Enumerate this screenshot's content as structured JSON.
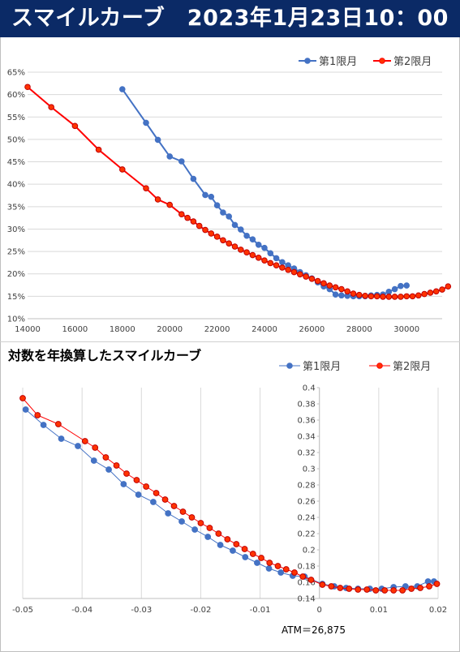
{
  "banner": {
    "title": "スマイルカーブ　2023年1月23日10：00"
  },
  "chart_data": [
    {
      "type": "line",
      "title": "",
      "xlabel": "",
      "ylabel": "",
      "xlim": [
        14000,
        31500
      ],
      "ylim": [
        0.1,
        0.65
      ],
      "y_format": "percent",
      "x_ticks": [
        14000,
        16000,
        18000,
        20000,
        22000,
        24000,
        26000,
        28000,
        30000
      ],
      "y_ticks": [
        0.1,
        0.15,
        0.2,
        0.25,
        0.3,
        0.35,
        0.4,
        0.45,
        0.5,
        0.55,
        0.6,
        0.65
      ],
      "x_tick_labels": [
        "14000",
        "16000",
        "18000",
        "20000",
        "22000",
        "24000",
        "26000",
        "28000",
        "30000"
      ],
      "y_tick_labels": [
        "10%",
        "15%",
        "20%",
        "25%",
        "30%",
        "35%",
        "40%",
        "45%",
        "50%",
        "55%",
        "60%",
        "65%"
      ],
      "legend_position": "top-right",
      "grid": "horizontal",
      "series": [
        {
          "name": "第1限月",
          "color": "#4472c4",
          "points": [
            [
              18000,
              0.612
            ],
            [
              19000,
              0.537
            ],
            [
              19500,
              0.499
            ],
            [
              20000,
              0.462
            ],
            [
              20500,
              0.451
            ],
            [
              21000,
              0.412
            ],
            [
              21500,
              0.376
            ],
            [
              21750,
              0.372
            ],
            [
              22000,
              0.353
            ],
            [
              22250,
              0.337
            ],
            [
              22500,
              0.328
            ],
            [
              22750,
              0.309
            ],
            [
              23000,
              0.299
            ],
            [
              23250,
              0.285
            ],
            [
              23500,
              0.277
            ],
            [
              23750,
              0.265
            ],
            [
              24000,
              0.258
            ],
            [
              24250,
              0.246
            ],
            [
              24500,
              0.235
            ],
            [
              24750,
              0.226
            ],
            [
              25000,
              0.219
            ],
            [
              25250,
              0.212
            ],
            [
              25500,
              0.204
            ],
            [
              25750,
              0.197
            ],
            [
              26000,
              0.19
            ],
            [
              26250,
              0.181
            ],
            [
              26500,
              0.172
            ],
            [
              26750,
              0.166
            ],
            [
              27000,
              0.154
            ],
            [
              27250,
              0.152
            ],
            [
              27500,
              0.151
            ],
            [
              27750,
              0.15
            ],
            [
              28000,
              0.15
            ],
            [
              28250,
              0.15
            ],
            [
              28500,
              0.152
            ],
            [
              28750,
              0.153
            ],
            [
              29000,
              0.154
            ],
            [
              29250,
              0.16
            ],
            [
              29500,
              0.166
            ],
            [
              29750,
              0.173
            ],
            [
              30000,
              0.174
            ]
          ]
        },
        {
          "name": "第2限月",
          "color": "#ff0000",
          "points": [
            [
              14000,
              0.617
            ],
            [
              15000,
              0.572
            ],
            [
              16000,
              0.53
            ],
            [
              17000,
              0.477
            ],
            [
              18000,
              0.433
            ],
            [
              19000,
              0.391
            ],
            [
              19500,
              0.366
            ],
            [
              20000,
              0.354
            ],
            [
              20500,
              0.333
            ],
            [
              20750,
              0.325
            ],
            [
              21000,
              0.317
            ],
            [
              21250,
              0.307
            ],
            [
              21500,
              0.298
            ],
            [
              21750,
              0.29
            ],
            [
              22000,
              0.283
            ],
            [
              22250,
              0.275
            ],
            [
              22500,
              0.268
            ],
            [
              22750,
              0.261
            ],
            [
              23000,
              0.254
            ],
            [
              23250,
              0.248
            ],
            [
              23500,
              0.242
            ],
            [
              23750,
              0.236
            ],
            [
              24000,
              0.23
            ],
            [
              24250,
              0.224
            ],
            [
              24500,
              0.219
            ],
            [
              24750,
              0.214
            ],
            [
              25000,
              0.209
            ],
            [
              25250,
              0.204
            ],
            [
              25500,
              0.199
            ],
            [
              25750,
              0.194
            ],
            [
              26000,
              0.189
            ],
            [
              26250,
              0.184
            ],
            [
              26500,
              0.179
            ],
            [
              26750,
              0.174
            ],
            [
              27000,
              0.17
            ],
            [
              27250,
              0.166
            ],
            [
              27500,
              0.161
            ],
            [
              27750,
              0.156
            ],
            [
              28000,
              0.153
            ],
            [
              28250,
              0.151
            ],
            [
              28500,
              0.15
            ],
            [
              28750,
              0.15
            ],
            [
              29000,
              0.149
            ],
            [
              29250,
              0.149
            ],
            [
              29500,
              0.149
            ],
            [
              29750,
              0.149
            ],
            [
              30000,
              0.15
            ],
            [
              30250,
              0.15
            ],
            [
              30500,
              0.152
            ],
            [
              30750,
              0.155
            ],
            [
              31000,
              0.158
            ],
            [
              31250,
              0.161
            ],
            [
              31500,
              0.165
            ],
            [
              31750,
              0.172
            ]
          ]
        }
      ]
    },
    {
      "type": "line",
      "title": "対数を年換算したスマイルカーブ",
      "xlabel": "",
      "ylabel": "",
      "xlim": [
        -0.05,
        0.02
      ],
      "ylim": [
        0.14,
        0.4
      ],
      "x_ticks": [
        -0.05,
        -0.04,
        -0.03,
        -0.02,
        -0.01,
        0,
        0.01,
        0.02
      ],
      "x_tick_labels": [
        "-0.05",
        "-0.04",
        "-0.03",
        "-0.02",
        "-0.01",
        "0",
        "0.01",
        "0.02"
      ],
      "y_ticks": [
        0.14,
        0.16,
        0.18,
        0.2,
        0.22,
        0.24,
        0.26,
        0.28,
        0.3,
        0.32,
        0.34,
        0.36,
        0.38,
        0.4
      ],
      "y_tick_labels": [
        "0.14",
        "0.16",
        "0.18",
        "0.2",
        "0.22",
        "0.24",
        "0.26",
        "0.28",
        "0.3",
        "0.32",
        "0.34",
        "0.36",
        "0.38",
        "0.4"
      ],
      "y_axis_at_x": 0,
      "legend_position": "top-right",
      "grid": "vertical",
      "annotation": "ATM＝26,875",
      "series": [
        {
          "name": "第1限月",
          "color": "#4472c4",
          "points": [
            [
              -0.0495,
              0.373
            ],
            [
              -0.0465,
              0.354
            ],
            [
              -0.0435,
              0.337
            ],
            [
              -0.0407,
              0.328
            ],
            [
              -0.038,
              0.31
            ],
            [
              -0.0355,
              0.299
            ],
            [
              -0.033,
              0.281
            ],
            [
              -0.0305,
              0.268
            ],
            [
              -0.028,
              0.259
            ],
            [
              -0.0255,
              0.245
            ],
            [
              -0.0232,
              0.235
            ],
            [
              -0.021,
              0.225
            ],
            [
              -0.0188,
              0.216
            ],
            [
              -0.0167,
              0.206
            ],
            [
              -0.0146,
              0.199
            ],
            [
              -0.0125,
              0.191
            ],
            [
              -0.0105,
              0.184
            ],
            [
              -0.0085,
              0.177
            ],
            [
              -0.0065,
              0.172
            ],
            [
              -0.0045,
              0.168
            ],
            [
              -0.0025,
              0.167
            ],
            [
              0.0005,
              0.158
            ],
            [
              0.0025,
              0.155
            ],
            [
              0.0045,
              0.153
            ],
            [
              0.0065,
              0.152
            ],
            [
              0.0085,
              0.152
            ],
            [
              0.0105,
              0.152
            ],
            [
              0.0125,
              0.154
            ],
            [
              0.0145,
              0.155
            ],
            [
              0.0165,
              0.155
            ],
            [
              0.0183,
              0.161
            ],
            [
              0.0193,
              0.161
            ]
          ]
        },
        {
          "name": "第2限月",
          "color": "#ff0000",
          "points": [
            [
              -0.05,
              0.387
            ],
            [
              -0.0475,
              0.366
            ],
            [
              -0.044,
              0.355
            ],
            [
              -0.0395,
              0.334
            ],
            [
              -0.0378,
              0.326
            ],
            [
              -0.036,
              0.314
            ],
            [
              -0.0342,
              0.304
            ],
            [
              -0.0325,
              0.294
            ],
            [
              -0.0308,
              0.286
            ],
            [
              -0.0292,
              0.278
            ],
            [
              -0.0275,
              0.27
            ],
            [
              -0.026,
              0.262
            ],
            [
              -0.0245,
              0.254
            ],
            [
              -0.023,
              0.247
            ],
            [
              -0.0215,
              0.24
            ],
            [
              -0.02,
              0.233
            ],
            [
              -0.0185,
              0.227
            ],
            [
              -0.017,
              0.22
            ],
            [
              -0.0155,
              0.213
            ],
            [
              -0.014,
              0.207
            ],
            [
              -0.0126,
              0.201
            ],
            [
              -0.0112,
              0.195
            ],
            [
              -0.0098,
              0.19
            ],
            [
              -0.0084,
              0.184
            ],
            [
              -0.007,
              0.18
            ],
            [
              -0.0056,
              0.176
            ],
            [
              -0.0042,
              0.172
            ],
            [
              -0.0028,
              0.167
            ],
            [
              -0.0014,
              0.163
            ],
            [
              0.0005,
              0.157
            ],
            [
              0.002,
              0.155
            ],
            [
              0.0035,
              0.153
            ],
            [
              0.005,
              0.152
            ],
            [
              0.0065,
              0.151
            ],
            [
              0.008,
              0.151
            ],
            [
              0.0095,
              0.15
            ],
            [
              0.011,
              0.15
            ],
            [
              0.0125,
              0.15
            ],
            [
              0.014,
              0.15
            ],
            [
              0.0155,
              0.152
            ],
            [
              0.017,
              0.153
            ],
            [
              0.0185,
              0.155
            ],
            [
              0.0198,
              0.158
            ]
          ]
        }
      ]
    }
  ]
}
